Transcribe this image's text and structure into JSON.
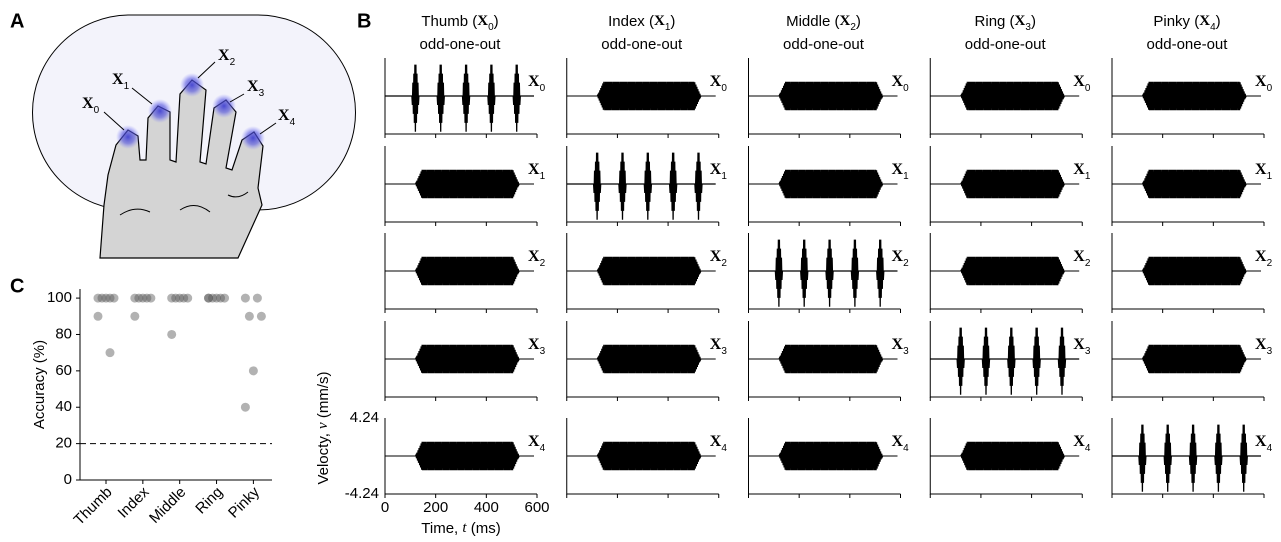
{
  "panel_labels": [
    "A",
    "B",
    "C"
  ],
  "panel_a": {
    "fingers": [
      {
        "symbol": "X",
        "sub": "0"
      },
      {
        "symbol": "X",
        "sub": "1"
      },
      {
        "symbol": "X",
        "sub": "2"
      },
      {
        "symbol": "X",
        "sub": "3"
      },
      {
        "symbol": "X",
        "sub": "4"
      }
    ]
  },
  "chart_data": [
    {
      "type": "waveform-grid",
      "columns": [
        {
          "name": "Thumb (",
          "symbol": "X",
          "sub": "0",
          "close": ")",
          "subtitle": "odd-one-out"
        },
        {
          "name": "Index (",
          "symbol": "X",
          "sub": "1",
          "close": ")",
          "subtitle": "odd-one-out"
        },
        {
          "name": "Middle (",
          "symbol": "X",
          "sub": "2",
          "close": ")",
          "subtitle": "odd-one-out"
        },
        {
          "name": "Ring (",
          "symbol": "X",
          "sub": "3",
          "close": ")",
          "subtitle": "odd-one-out"
        },
        {
          "name": "Pinky (",
          "symbol": "X",
          "sub": "4",
          "close": ")",
          "subtitle": "odd-one-out"
        }
      ],
      "rows": [
        {
          "symbol": "X",
          "sub": "0"
        },
        {
          "symbol": "X",
          "sub": "1"
        },
        {
          "symbol": "X",
          "sub": "2"
        },
        {
          "symbol": "X",
          "sub": "3"
        },
        {
          "symbol": "X",
          "sub": "4"
        }
      ],
      "burst_ms": [
        120,
        530
      ],
      "burst_amplitude": 1.6,
      "pulse_ms": [
        120,
        220,
        320,
        420,
        520
      ],
      "pulse_amplitude": 4,
      "xlim": [
        0,
        600
      ],
      "xticks": [
        0,
        200,
        400,
        600
      ],
      "ylim": [
        -4.24,
        4.24
      ],
      "yticks": [
        4.24,
        -4.24
      ],
      "xlabel": {
        "text": "Time, ",
        "var": "t",
        "unit": " (ms)"
      },
      "ylabel": {
        "text": "Velocty, ",
        "var": "v",
        "unit": " (mm/s)"
      }
    },
    {
      "type": "scatter",
      "categories": [
        "Thumb",
        "Index",
        "Middle",
        "Ring",
        "Pinky"
      ],
      "values": [
        [
          100,
          100,
          100,
          100,
          100,
          90,
          70
        ],
        [
          100,
          100,
          100,
          100,
          100,
          90
        ],
        [
          100,
          100,
          100,
          100,
          100,
          80
        ],
        [
          100,
          100,
          100,
          100,
          100,
          100
        ],
        [
          100,
          100,
          90,
          90,
          60,
          40
        ]
      ],
      "color": "#555555",
      "ylim": [
        0,
        105
      ],
      "yticks": [
        0,
        20,
        40,
        60,
        80,
        100
      ],
      "ylabel": "Accuracy (%)",
      "chance_level": 20
    }
  ]
}
